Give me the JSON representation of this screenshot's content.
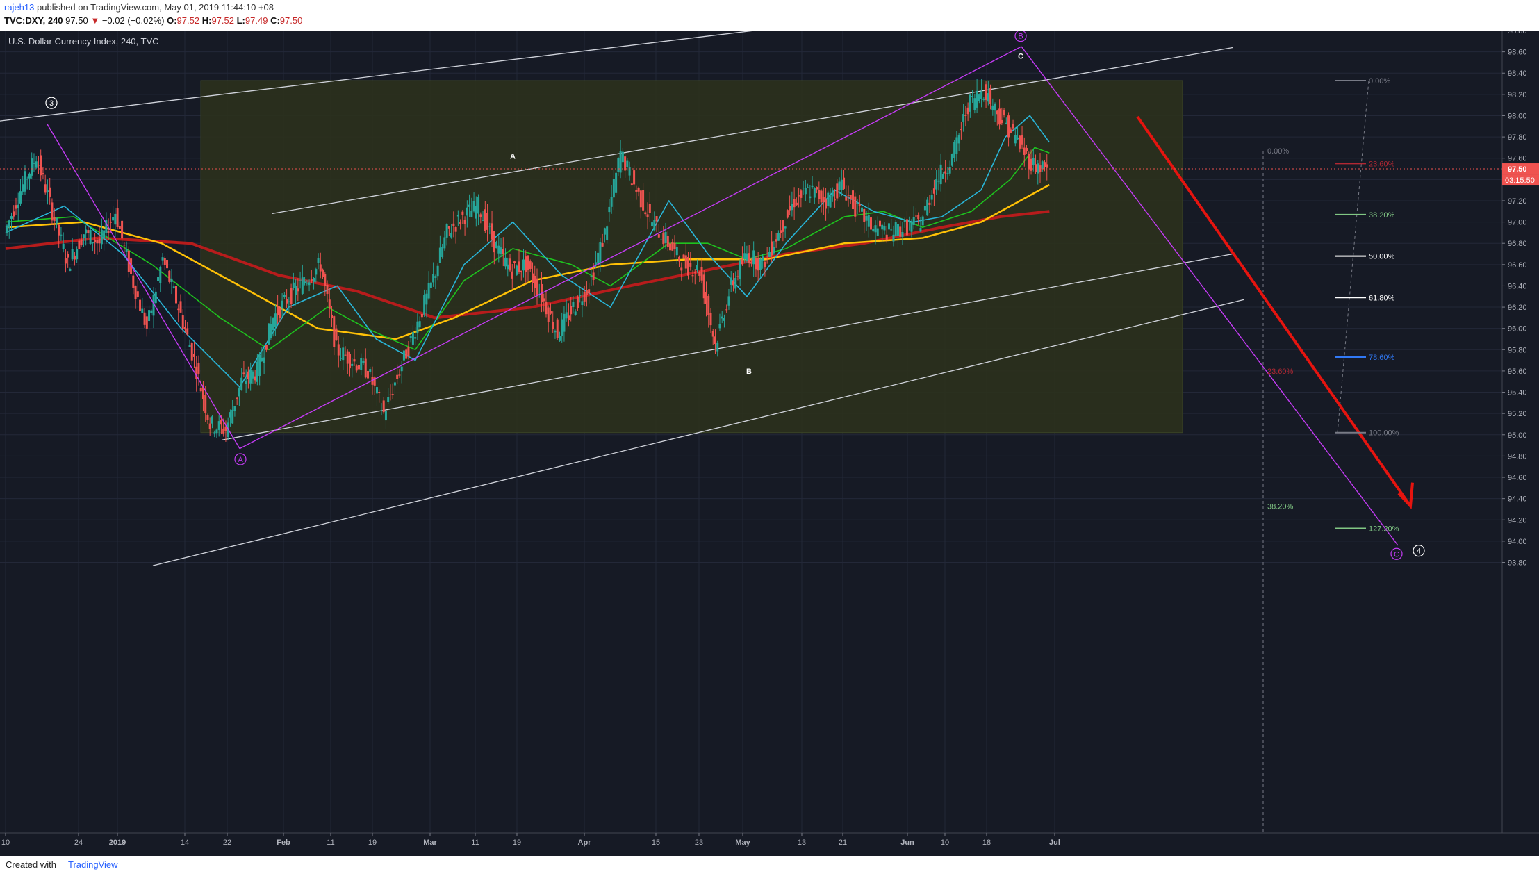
{
  "header": {
    "author": "rajeh13",
    "published": "published on TradingView.com, May 01, 2019 11:44:10 +08",
    "symbol": "TVC:DXY, 240",
    "last": "97.50",
    "arrow": "▼",
    "change": "−0.02 (−0.02%)",
    "o_label": "O:",
    "o_value": "97.52",
    "h_label": "H:",
    "h_value": "97.52",
    "l_label": "L:",
    "l_value": "97.49",
    "c_label": "C:",
    "c_value": "97.50"
  },
  "footer": {
    "created": "Created with",
    "brand": "TradingView"
  },
  "chart_data": {
    "type": "candlestick",
    "title": "U.S. Dollar Currency Index, 240, TVC",
    "ylim": [
      93.7,
      98.95
    ],
    "y_ticks": [
      "93.80",
      "94.00",
      "94.20",
      "94.40",
      "94.60",
      "94.80",
      "95.00",
      "95.20",
      "95.40",
      "95.60",
      "95.80",
      "96.00",
      "96.20",
      "96.40",
      "96.60",
      "96.80",
      "97.00",
      "97.20",
      "97.40",
      "97.60",
      "97.80",
      "98.00",
      "98.20",
      "98.40",
      "98.60",
      "98.80"
    ],
    "x_ticks": [
      "10",
      "24",
      "2019",
      "14",
      "22",
      "Feb",
      "11",
      "19",
      "Mar",
      "11",
      "19",
      "Apr",
      "15",
      "23",
      "May",
      "13",
      "21",
      "Jun",
      "10",
      "18",
      "Jul"
    ],
    "price_series": [
      [
        "Dec 10",
        96.9
      ],
      [
        "Dec 12",
        97.3
      ],
      [
        "Dec 14",
        97.62
      ],
      [
        "Dec 17",
        97.1
      ],
      [
        "Dec 19",
        96.6
      ],
      [
        "Dec 21",
        96.9
      ],
      [
        "Dec 24",
        96.8
      ],
      [
        "Dec 26",
        97.1
      ],
      [
        "Dec 28",
        96.5
      ],
      [
        "2019",
        96.0
      ],
      [
        "Jan 3",
        96.65
      ],
      [
        "Jan 4",
        96.2
      ],
      [
        "Jan 7",
        95.7
      ],
      [
        "Jan 9",
        95.1
      ],
      [
        "Jan 10",
        95.05
      ],
      [
        "Jan 11",
        95.5
      ],
      [
        "Jan 14",
        95.6
      ],
      [
        "Jan 16",
        96.1
      ],
      [
        "Jan 18",
        96.3
      ],
      [
        "Jan 22",
        96.45
      ],
      [
        "Jan 24",
        96.6
      ],
      [
        "Jan 25",
        95.8
      ],
      [
        "Jan 28",
        95.7
      ],
      [
        "Jan 30",
        95.6
      ],
      [
        "Feb 1",
        95.2
      ],
      [
        "Feb 4",
        95.6
      ],
      [
        "Feb 6",
        96.0
      ],
      [
        "Feb 8",
        96.4
      ],
      [
        "Feb 11",
        96.9
      ],
      [
        "Feb 13",
        97.05
      ],
      [
        "Feb 15",
        97.15
      ],
      [
        "Feb 18",
        96.8
      ],
      [
        "Feb 20",
        96.55
      ],
      [
        "Feb 22",
        96.6
      ],
      [
        "Feb 25",
        96.3
      ],
      [
        "Feb 27",
        95.95
      ],
      [
        "Mar 1",
        96.2
      ],
      [
        "Mar 4",
        96.4
      ],
      [
        "Mar 6",
        96.9
      ],
      [
        "Mar 7",
        97.65
      ],
      [
        "Mar 8",
        97.3
      ],
      [
        "Mar 11",
        97.0
      ],
      [
        "Mar 13",
        96.8
      ],
      [
        "Mar 15",
        96.6
      ],
      [
        "Mar 18",
        96.55
      ],
      [
        "Mar 20",
        95.85
      ],
      [
        "Mar 21",
        96.4
      ],
      [
        "Mar 22",
        96.7
      ],
      [
        "Mar 25",
        96.6
      ],
      [
        "Mar 27",
        96.9
      ],
      [
        "Mar 29",
        97.2
      ],
      [
        "Apr 1",
        97.3
      ],
      [
        "Apr 3",
        97.2
      ],
      [
        "Apr 5",
        97.35
      ],
      [
        "Apr 8",
        97.1
      ],
      [
        "Apr 10",
        96.95
      ],
      [
        "Apr 12",
        96.9
      ],
      [
        "Apr 15",
        96.95
      ],
      [
        "Apr 17",
        97.0
      ],
      [
        "Apr 19",
        97.4
      ],
      [
        "Apr 22",
        97.6
      ],
      [
        "Apr 24",
        98.1
      ],
      [
        "Apr 25",
        98.25
      ],
      [
        "Apr 26",
        98.0
      ],
      [
        "Apr 29",
        97.8
      ],
      [
        "Apr 30",
        97.55
      ],
      [
        "May 1",
        97.5
      ]
    ],
    "moving_averages": [
      {
        "color": "#b71c1c",
        "values": [
          [
            0,
            96.75
          ],
          [
            95,
            96.85
          ],
          [
            190,
            96.8
          ],
          [
            280,
            96.5
          ],
          [
            360,
            96.35
          ],
          [
            440,
            96.1
          ],
          [
            540,
            96.2
          ],
          [
            640,
            96.4
          ],
          [
            720,
            96.55
          ],
          [
            800,
            96.7
          ],
          [
            880,
            96.8
          ],
          [
            960,
            96.95
          ],
          [
            1020,
            97.05
          ],
          [
            1070,
            97.1
          ]
        ]
      },
      {
        "color": "#ffc107",
        "values": [
          [
            0,
            96.95
          ],
          [
            80,
            97.0
          ],
          [
            160,
            96.8
          ],
          [
            240,
            96.4
          ],
          [
            320,
            96.0
          ],
          [
            400,
            95.9
          ],
          [
            460,
            96.1
          ],
          [
            540,
            96.45
          ],
          [
            620,
            96.6
          ],
          [
            700,
            96.65
          ],
          [
            780,
            96.65
          ],
          [
            860,
            96.8
          ],
          [
            940,
            96.85
          ],
          [
            1000,
            97.0
          ],
          [
            1040,
            97.2
          ],
          [
            1070,
            97.35
          ]
        ]
      },
      {
        "color": "#1ec31e",
        "values": [
          [
            0,
            97.0
          ],
          [
            70,
            97.05
          ],
          [
            150,
            96.6
          ],
          [
            220,
            96.1
          ],
          [
            270,
            95.8
          ],
          [
            330,
            96.2
          ],
          [
            370,
            96.0
          ],
          [
            420,
            95.8
          ],
          [
            470,
            96.45
          ],
          [
            520,
            96.75
          ],
          [
            580,
            96.6
          ],
          [
            620,
            96.4
          ],
          [
            680,
            96.8
          ],
          [
            720,
            96.8
          ],
          [
            760,
            96.65
          ],
          [
            800,
            96.75
          ],
          [
            860,
            97.05
          ],
          [
            900,
            97.1
          ],
          [
            940,
            96.95
          ],
          [
            990,
            97.1
          ],
          [
            1030,
            97.4
          ],
          [
            1055,
            97.7
          ],
          [
            1070,
            97.65
          ]
        ]
      },
      {
        "color": "#29b6d9",
        "values": [
          [
            0,
            96.9
          ],
          [
            60,
            97.15
          ],
          [
            120,
            96.7
          ],
          [
            180,
            96.0
          ],
          [
            240,
            95.45
          ],
          [
            290,
            96.2
          ],
          [
            340,
            96.4
          ],
          [
            380,
            95.9
          ],
          [
            420,
            95.7
          ],
          [
            470,
            96.6
          ],
          [
            520,
            97.0
          ],
          [
            570,
            96.5
          ],
          [
            620,
            96.2
          ],
          [
            680,
            97.2
          ],
          [
            720,
            96.7
          ],
          [
            760,
            96.3
          ],
          [
            800,
            96.8
          ],
          [
            850,
            97.3
          ],
          [
            890,
            97.1
          ],
          [
            930,
            97.0
          ],
          [
            960,
            97.05
          ],
          [
            1000,
            97.3
          ],
          [
            1025,
            97.8
          ],
          [
            1050,
            98.0
          ],
          [
            1070,
            97.75
          ]
        ]
      }
    ],
    "fib_levels_right": [
      {
        "label": "0.00%",
        "value": 98.33,
        "color": "#787b86"
      },
      {
        "label": "23.60%",
        "value": 97.55,
        "color": "#b22833"
      },
      {
        "label": "38.20%",
        "value": 97.07,
        "color": "#81c784"
      },
      {
        "label": "50.00%",
        "value": 96.68,
        "color": "#ffffff"
      },
      {
        "label": "61.80%",
        "value": 96.29,
        "color": "#ffffff"
      },
      {
        "label": "78.60%",
        "value": 95.73,
        "color": "#3179f5"
      },
      {
        "label": "100.00%",
        "value": 95.02,
        "color": "#787b86"
      },
      {
        "label": "127.20%",
        "value": 94.12,
        "color": "#81c784"
      }
    ],
    "fib_levels_left": [
      {
        "label": "0.00%",
        "value": 97.67,
        "color": "#787b86"
      },
      {
        "label": "23.60%",
        "value": 95.6,
        "color": "#b22833"
      },
      {
        "label": "38.20%",
        "value": 94.33,
        "color": "#81c784"
      }
    ],
    "wave_labels": [
      {
        "text": "3",
        "kind": "circle",
        "color": "#ffffff"
      },
      {
        "text": "A",
        "kind": "circle",
        "color": "#c43bf5"
      },
      {
        "text": "B",
        "kind": "circle",
        "color": "#c43bf5"
      },
      {
        "text": "C",
        "kind": "circle",
        "color": "#c43bf5"
      },
      {
        "text": "4",
        "kind": "circle",
        "color": "#ffffff"
      },
      {
        "text": "A",
        "kind": "plain",
        "color": "#ffffff"
      },
      {
        "text": "B",
        "kind": "plain",
        "color": "#ffffff"
      },
      {
        "text": "C",
        "kind": "plain",
        "color": "#ffffff"
      }
    ],
    "last_price": {
      "value": "97.50",
      "time": "03:15:50"
    },
    "colors": {
      "background": "#161a25",
      "up": "#26a69a",
      "down": "#ef5350",
      "projection": "#e5140f",
      "pattern": "#c43bf5",
      "channel": "#d1d4dc",
      "box": "#333b24"
    }
  }
}
